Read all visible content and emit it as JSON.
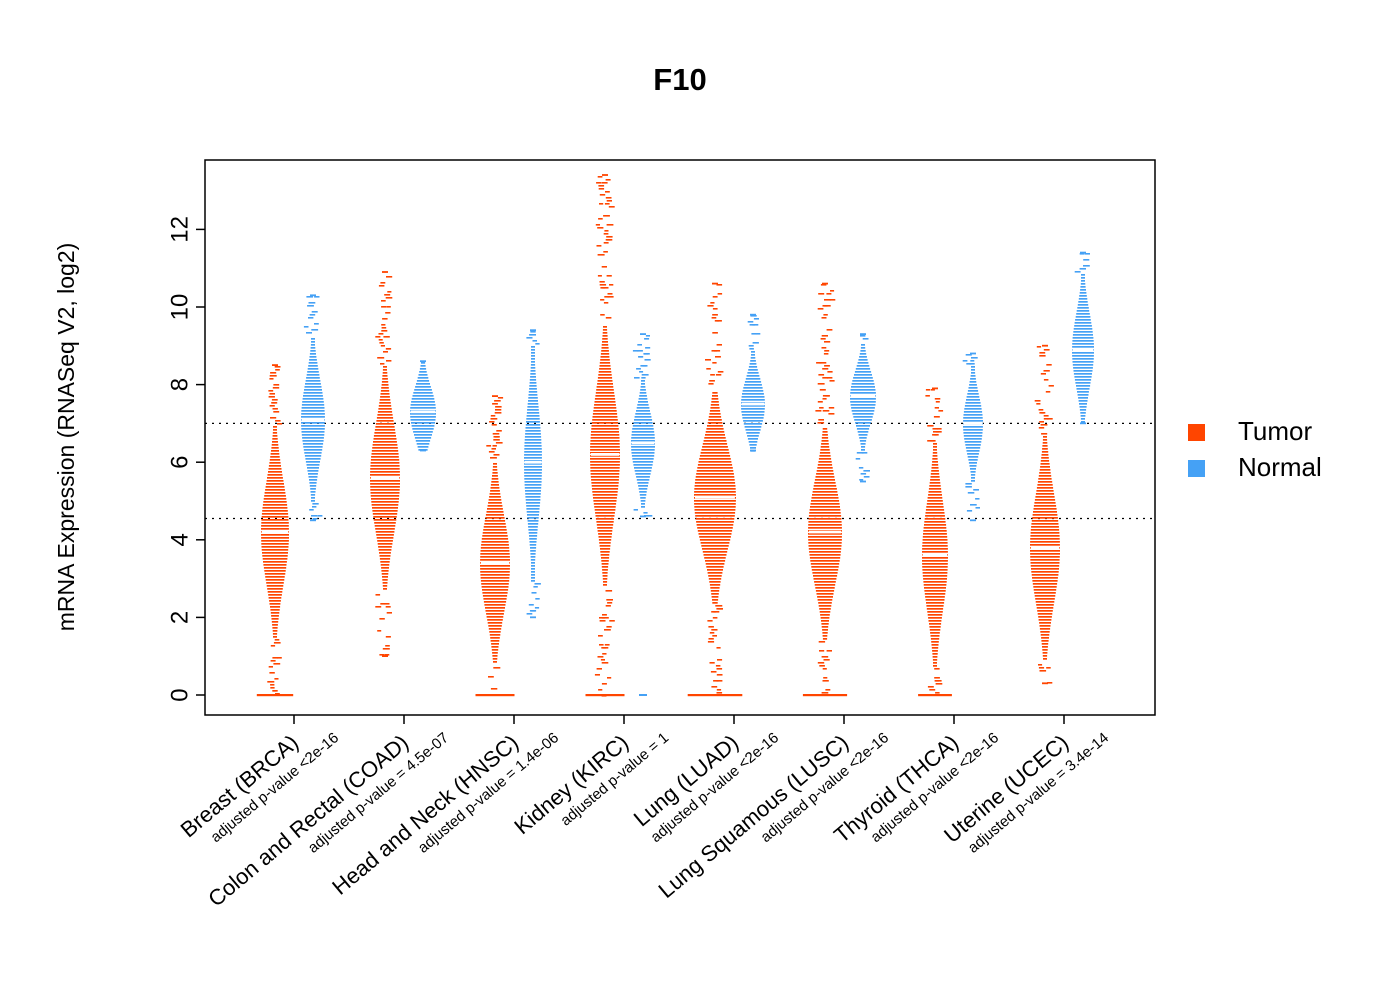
{
  "title": "F10",
  "y_axis": {
    "label": "mRNA Expression (RNASeq V2, log2)",
    "ticks": [
      0,
      2,
      4,
      6,
      8,
      10,
      12
    ]
  },
  "legend": {
    "items": [
      {
        "label": "Tumor",
        "color": "#FF4500"
      },
      {
        "label": "Normal",
        "color": "#45A1F5"
      }
    ]
  },
  "chart_data": {
    "type": "violin",
    "title": "F10",
    "ylabel": "mRNA Expression (RNASeq V2, log2)",
    "ylim": [
      -0.4,
      13.8
    ],
    "grid": false,
    "legend_position": "right",
    "reference_lines": [
      7.0,
      4.55
    ],
    "categories": [
      {
        "label": "Breast (BRCA)",
        "pvalue": "adjusted p-value <2e-16"
      },
      {
        "label": "Colon and Rectal (COAD)",
        "pvalue": "adjusted p-value = 4.5e-07"
      },
      {
        "label": "Head and Neck (HNSC)",
        "pvalue": "adjusted p-value = 1.4e-06"
      },
      {
        "label": "Kidney (KIRC)",
        "pvalue": "adjusted p-value = 1"
      },
      {
        "label": "Lung (LUAD)",
        "pvalue": "adjusted p-value <2e-16"
      },
      {
        "label": "Lung Squamous (LUSC)",
        "pvalue": "adjusted p-value <2e-16"
      },
      {
        "label": "Thyroid (THCA)",
        "pvalue": "adjusted p-value <2e-16"
      },
      {
        "label": "Uterine (UCEC)",
        "pvalue": "adjusted p-value = 3.4e-14"
      }
    ],
    "series": [
      {
        "name": "Tumor",
        "color": "#FF4500",
        "groups": [
          {
            "median": 4.2,
            "q1": 3.4,
            "q3": 5.2,
            "min": 0,
            "max": 8.5,
            "width": 14,
            "zero_stack": true
          },
          {
            "median": 5.6,
            "q1": 4.7,
            "q3": 6.6,
            "min": 1.0,
            "max": 10.9,
            "width": 15,
            "zero_stack": false
          },
          {
            "median": 3.4,
            "q1": 2.7,
            "q3": 4.4,
            "min": 0,
            "max": 7.7,
            "width": 15,
            "zero_stack": true
          },
          {
            "median": 6.2,
            "q1": 5.2,
            "q3": 7.4,
            "min": 0,
            "max": 13.4,
            "width": 15,
            "zero_stack": true
          },
          {
            "median": 5.1,
            "q1": 4.3,
            "q3": 6.1,
            "min": 0,
            "max": 10.6,
            "width": 21,
            "zero_stack": true
          },
          {
            "median": 4.2,
            "q1": 3.5,
            "q3": 5.3,
            "min": 0,
            "max": 10.6,
            "width": 17,
            "zero_stack": true
          },
          {
            "median": 3.6,
            "q1": 2.9,
            "q3": 4.8,
            "min": 0,
            "max": 7.9,
            "width": 13,
            "zero_stack": true
          },
          {
            "median": 3.8,
            "q1": 3.1,
            "q3": 5.0,
            "min": 0.3,
            "max": 9.0,
            "width": 15,
            "zero_stack": false
          }
        ]
      },
      {
        "name": "Normal",
        "color": "#45A1F5",
        "groups": [
          {
            "median": 7.1,
            "q1": 6.5,
            "q3": 7.9,
            "min": 4.5,
            "max": 10.3,
            "width": 12,
            "zero_stack": false
          },
          {
            "median": 7.3,
            "q1": 6.9,
            "q3": 7.8,
            "min": 6.3,
            "max": 8.6,
            "width": 13,
            "zero_stack": false
          },
          {
            "median": 6.0,
            "q1": 5.0,
            "q3": 7.0,
            "min": 2.0,
            "max": 9.4,
            "width": 9,
            "zero_stack": false
          },
          {
            "median": 6.5,
            "q1": 6.0,
            "q3": 7.1,
            "min": 4.6,
            "max": 9.3,
            "width": 12,
            "zero_stack": false,
            "extra_points": [
              0
            ]
          },
          {
            "median": 7.5,
            "q1": 7.1,
            "q3": 8.0,
            "min": 6.3,
            "max": 9.8,
            "width": 12,
            "zero_stack": false
          },
          {
            "median": 7.7,
            "q1": 7.3,
            "q3": 8.2,
            "min": 5.5,
            "max": 9.3,
            "width": 13,
            "zero_stack": false
          },
          {
            "median": 7.0,
            "q1": 6.5,
            "q3": 7.5,
            "min": 4.5,
            "max": 8.8,
            "width": 10,
            "zero_stack": false
          },
          {
            "median": 8.9,
            "q1": 8.3,
            "q3": 9.6,
            "min": 7.0,
            "max": 11.4,
            "width": 11,
            "zero_stack": false
          }
        ]
      }
    ]
  }
}
